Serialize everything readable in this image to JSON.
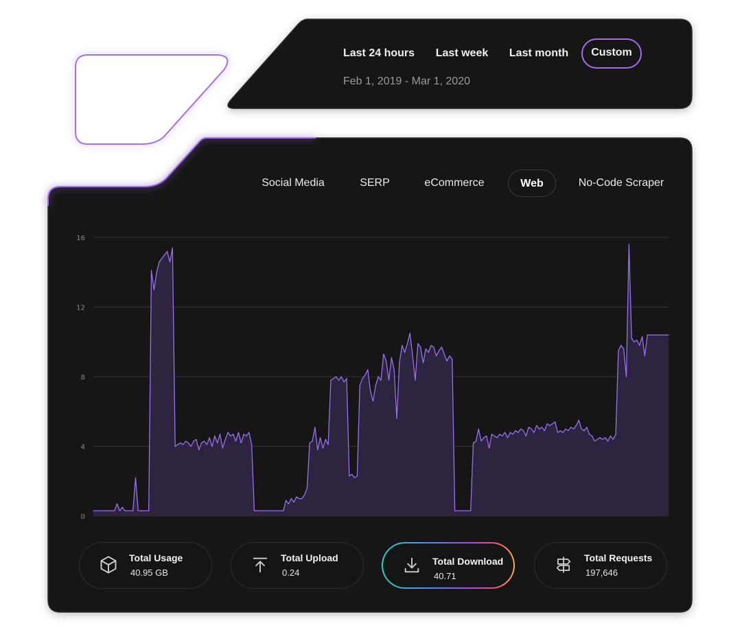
{
  "range_tabs": {
    "last_24_hours": "Last 24 hours",
    "last_week": "Last week",
    "last_month": "Last month",
    "custom": "Custom",
    "date_range": "Feb 1, 2019 - Mar 1, 2020"
  },
  "category_tabs": {
    "social_media": "Social Media",
    "serp": "SERP",
    "ecommerce": "eCommerce",
    "web": "Web",
    "no_code_scraper": "No-Code Scraper"
  },
  "stats": {
    "usage": {
      "label": "Total Usage",
      "value": "40.95 GB"
    },
    "upload": {
      "label": "Total Upload",
      "value": "0.24"
    },
    "download": {
      "label": "Total Download",
      "value": "40.71"
    },
    "requests": {
      "label": "Total Requests",
      "value": "197,646"
    }
  },
  "colors": {
    "accent": "#a56cf0",
    "line": "#9b6ff0",
    "area": "#2d2440",
    "panel": "#171717"
  },
  "chart_data": {
    "type": "area",
    "title": "",
    "xlabel": "",
    "ylabel": "",
    "ylim": [
      0,
      16
    ],
    "yticks": [
      "0",
      "4",
      "8",
      "12",
      "16"
    ],
    "grid": true,
    "series": [
      {
        "values": [
          0.3,
          0.3,
          0.3,
          0.3,
          0.3,
          0.3,
          0.3,
          0.3,
          0.3,
          0.7,
          0.3,
          0.5,
          0.3,
          0.3,
          0.3,
          0.3,
          2.2,
          0.3,
          0.3,
          0.3,
          0.3,
          0.3,
          14.1,
          13.0,
          14.0,
          14.6,
          14.8,
          15.0,
          15.2,
          14.6,
          15.4,
          4.0,
          4.1,
          4.2,
          4.1,
          4.3,
          4.2,
          4.0,
          4.3,
          4.4,
          3.8,
          4.2,
          4.3,
          4.1,
          4.5,
          4.0,
          4.6,
          4.2,
          4.7,
          3.9,
          4.4,
          4.8,
          4.6,
          4.7,
          4.3,
          4.8,
          4.2,
          4.7,
          4.6,
          4.8,
          4.1,
          0.3,
          0.3,
          0.3,
          0.3,
          0.3,
          0.3,
          0.3,
          0.3,
          0.3,
          0.3,
          0.3,
          0.3,
          0.9,
          0.7,
          1.0,
          0.8,
          1.1,
          1.0,
          1.0,
          1.2,
          1.6,
          4.2,
          4.3,
          5.1,
          3.8,
          4.5,
          3.9,
          4.4,
          4.1,
          7.8,
          7.9,
          8.0,
          7.8,
          8.0,
          7.7,
          7.9,
          2.3,
          2.4,
          2.2,
          2.3,
          7.5,
          7.9,
          8.1,
          8.4,
          7.2,
          6.6,
          7.5,
          8.0,
          7.8,
          9.3,
          8.9,
          7.8,
          9.1,
          8.4,
          5.6,
          8.8,
          9.8,
          9.4,
          9.9,
          10.5,
          9.2,
          7.8,
          9.9,
          9.7,
          8.8,
          9.6,
          9.4,
          9.8,
          9.7,
          9.2,
          9.5,
          9.7,
          9.3,
          8.9,
          9.2,
          9.0,
          0.3,
          0.3,
          0.3,
          0.3,
          0.3,
          0.3,
          0.3,
          4.2,
          4.3,
          5.0,
          4.3,
          4.5,
          4.6,
          3.9,
          4.7,
          4.6,
          4.5,
          4.7,
          4.6,
          4.8,
          4.5,
          4.8,
          4.7,
          4.9,
          4.8,
          5.0,
          4.9,
          4.6,
          5.1,
          5.0,
          4.8,
          5.2,
          5.0,
          5.1,
          4.9,
          5.3,
          5.2,
          5.3,
          5.4,
          4.8,
          4.9,
          4.8,
          5.0,
          4.9,
          5.1,
          5.0,
          5.2,
          5.5,
          5.0,
          4.9,
          5.1,
          4.7,
          4.6,
          4.3,
          4.4,
          4.5,
          4.4,
          4.5,
          4.3,
          4.6,
          4.4,
          4.7,
          9.5,
          9.8,
          9.6,
          8.0,
          15.6,
          10.2,
          10.0,
          10.1,
          9.8,
          10.3,
          9.2,
          10.4,
          10.4,
          10.4,
          10.4,
          10.4,
          10.4,
          10.4,
          10.4,
          10.4
        ]
      }
    ]
  }
}
